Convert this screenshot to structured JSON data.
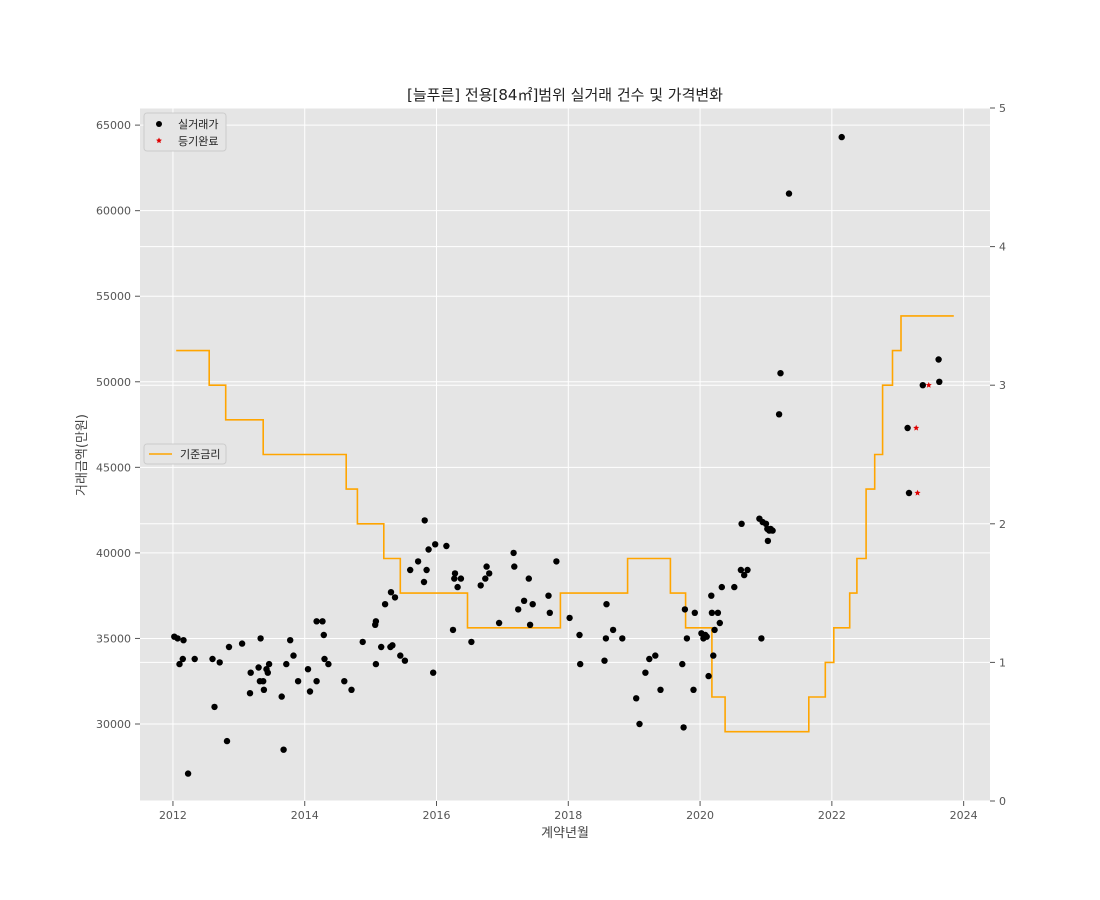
{
  "chart_data": {
    "type": "scatter",
    "title": "[늘푸른] 전용[84㎡]범위 실거래 건수 및 가격변화",
    "xlabel": "계약년월",
    "ylabel": "거래금액(만원)",
    "xlim": [
      2011.5,
      2024.4
    ],
    "ylim": [
      25500,
      66000
    ],
    "y2lim": [
      0,
      5
    ],
    "x_ticks": [
      2012,
      2014,
      2016,
      2018,
      2020,
      2022,
      2024
    ],
    "y_ticks": [
      30000,
      35000,
      40000,
      45000,
      50000,
      55000,
      60000,
      65000
    ],
    "y2_ticks": [
      0,
      1,
      2,
      3,
      4,
      5
    ],
    "x_tick_labels": [
      "2012",
      "2014",
      "2016",
      "2018",
      "2020",
      "2022",
      "2024"
    ],
    "y_tick_labels": [
      "30000",
      "35000",
      "40000",
      "45000",
      "50000",
      "55000",
      "60000",
      "65000"
    ],
    "y2_tick_labels": [
      "0",
      "1",
      "2",
      "3",
      "4",
      "5"
    ],
    "grid": true,
    "legend_top": {
      "placement": "top-left",
      "entries": [
        "실거래가",
        "등기완료"
      ]
    },
    "legend_mid": {
      "placement": "center-left",
      "entries": [
        "기준금리"
      ]
    },
    "colors": {
      "transactions": "#000000",
      "registered": "#e00000",
      "base_rate": "#ffa500",
      "plot_bg": "#e5e5e5",
      "grid": "#ffffff"
    },
    "series": [
      {
        "name": "실거래가",
        "kind": "scatter",
        "points": [
          [
            2012.02,
            35100
          ],
          [
            2012.07,
            35000
          ],
          [
            2012.1,
            33500
          ],
          [
            2012.15,
            33800
          ],
          [
            2012.16,
            34900
          ],
          [
            2012.23,
            27100
          ],
          [
            2012.33,
            33800
          ],
          [
            2012.6,
            33800
          ],
          [
            2012.63,
            31000
          ],
          [
            2012.71,
            33600
          ],
          [
            2012.82,
            29000
          ],
          [
            2012.85,
            34500
          ],
          [
            2013.05,
            34700
          ],
          [
            2013.17,
            31800
          ],
          [
            2013.18,
            33000
          ],
          [
            2013.3,
            33300
          ],
          [
            2013.32,
            32500
          ],
          [
            2013.33,
            35000
          ],
          [
            2013.37,
            32500
          ],
          [
            2013.38,
            32000
          ],
          [
            2013.42,
            33200
          ],
          [
            2013.44,
            33000
          ],
          [
            2013.46,
            33500
          ],
          [
            2013.65,
            31600
          ],
          [
            2013.68,
            28500
          ],
          [
            2013.72,
            33500
          ],
          [
            2013.78,
            34900
          ],
          [
            2013.83,
            34000
          ],
          [
            2013.9,
            32500
          ],
          [
            2014.05,
            33200
          ],
          [
            2014.08,
            31900
          ],
          [
            2014.18,
            32500
          ],
          [
            2014.18,
            36000
          ],
          [
            2014.27,
            36000
          ],
          [
            2014.29,
            35200
          ],
          [
            2014.3,
            33800
          ],
          [
            2014.36,
            33500
          ],
          [
            2014.6,
            32500
          ],
          [
            2014.71,
            32000
          ],
          [
            2014.88,
            34800
          ],
          [
            2015.07,
            35800
          ],
          [
            2015.08,
            36000
          ],
          [
            2015.08,
            33500
          ],
          [
            2015.16,
            34500
          ],
          [
            2015.22,
            37000
          ],
          [
            2015.3,
            34500
          ],
          [
            2015.31,
            37700
          ],
          [
            2015.33,
            34600
          ],
          [
            2015.37,
            37400
          ],
          [
            2015.45,
            34000
          ],
          [
            2015.52,
            33700
          ],
          [
            2015.6,
            39000
          ],
          [
            2015.72,
            39500
          ],
          [
            2015.81,
            38300
          ],
          [
            2015.82,
            41900
          ],
          [
            2015.85,
            39000
          ],
          [
            2015.88,
            40200
          ],
          [
            2015.95,
            33000
          ],
          [
            2015.98,
            40500
          ],
          [
            2016.15,
            40400
          ],
          [
            2016.25,
            35500
          ],
          [
            2016.27,
            38500
          ],
          [
            2016.28,
            38800
          ],
          [
            2016.32,
            38000
          ],
          [
            2016.37,
            38500
          ],
          [
            2016.53,
            34800
          ],
          [
            2016.67,
            38100
          ],
          [
            2016.74,
            38500
          ],
          [
            2016.76,
            39200
          ],
          [
            2016.8,
            38800
          ],
          [
            2016.95,
            35900
          ],
          [
            2017.17,
            40000
          ],
          [
            2017.18,
            39200
          ],
          [
            2017.24,
            36700
          ],
          [
            2017.33,
            37200
          ],
          [
            2017.4,
            38500
          ],
          [
            2017.42,
            35800
          ],
          [
            2017.46,
            37000
          ],
          [
            2017.7,
            37500
          ],
          [
            2017.72,
            36500
          ],
          [
            2017.82,
            39500
          ],
          [
            2018.02,
            36200
          ],
          [
            2018.17,
            35200
          ],
          [
            2018.18,
            33500
          ],
          [
            2018.55,
            33700
          ],
          [
            2018.57,
            35000
          ],
          [
            2018.58,
            37000
          ],
          [
            2018.68,
            35500
          ],
          [
            2018.82,
            35000
          ],
          [
            2019.03,
            31500
          ],
          [
            2019.08,
            30000
          ],
          [
            2019.17,
            33000
          ],
          [
            2019.23,
            33800
          ],
          [
            2019.32,
            34000
          ],
          [
            2019.4,
            32000
          ],
          [
            2019.73,
            33500
          ],
          [
            2019.75,
            29800
          ],
          [
            2019.77,
            36700
          ],
          [
            2019.8,
            35000
          ],
          [
            2019.9,
            32000
          ],
          [
            2019.92,
            36500
          ],
          [
            2020.02,
            35300
          ],
          [
            2020.05,
            35000
          ],
          [
            2020.08,
            35200
          ],
          [
            2020.1,
            35100
          ],
          [
            2020.13,
            32800
          ],
          [
            2020.17,
            37500
          ],
          [
            2020.18,
            36500
          ],
          [
            2020.2,
            34000
          ],
          [
            2020.22,
            35500
          ],
          [
            2020.27,
            36500
          ],
          [
            2020.3,
            35900
          ],
          [
            2020.33,
            38000
          ],
          [
            2020.52,
            38000
          ],
          [
            2020.62,
            39000
          ],
          [
            2020.63,
            41700
          ],
          [
            2020.67,
            38700
          ],
          [
            2020.72,
            39000
          ],
          [
            2020.9,
            42000
          ],
          [
            2020.93,
            35000
          ],
          [
            2020.95,
            41800
          ],
          [
            2021.0,
            41700
          ],
          [
            2021.02,
            41400
          ],
          [
            2021.03,
            40700
          ],
          [
            2021.05,
            41300
          ],
          [
            2021.07,
            41400
          ],
          [
            2021.1,
            41300
          ],
          [
            2021.2,
            48100
          ],
          [
            2021.22,
            50500
          ],
          [
            2021.35,
            61000
          ],
          [
            2022.15,
            64300
          ],
          [
            2023.15,
            47300
          ],
          [
            2023.17,
            43500
          ],
          [
            2023.38,
            49800
          ],
          [
            2023.62,
            51300
          ],
          [
            2023.63,
            50000
          ]
        ]
      },
      {
        "name": "등기완료",
        "kind": "scatter",
        "points": [
          [
            2023.28,
            47300
          ],
          [
            2023.3,
            43500
          ],
          [
            2023.47,
            49800
          ]
        ]
      },
      {
        "name": "기준금리",
        "kind": "step",
        "axis": "right",
        "x_end": 2023.85,
        "steps": [
          [
            2012.05,
            3.25
          ],
          [
            2012.55,
            3.0
          ],
          [
            2012.8,
            2.75
          ],
          [
            2013.37,
            2.5
          ],
          [
            2014.63,
            2.25
          ],
          [
            2014.8,
            2.0
          ],
          [
            2015.2,
            1.75
          ],
          [
            2015.45,
            1.5
          ],
          [
            2016.47,
            1.25
          ],
          [
            2017.88,
            1.5
          ],
          [
            2018.9,
            1.75
          ],
          [
            2019.55,
            1.5
          ],
          [
            2019.78,
            1.25
          ],
          [
            2020.18,
            0.75
          ],
          [
            2020.38,
            0.5
          ],
          [
            2021.65,
            0.75
          ],
          [
            2021.9,
            1.0
          ],
          [
            2022.03,
            1.25
          ],
          [
            2022.27,
            1.5
          ],
          [
            2022.38,
            1.75
          ],
          [
            2022.52,
            2.25
          ],
          [
            2022.65,
            2.5
          ],
          [
            2022.77,
            3.0
          ],
          [
            2022.92,
            3.25
          ],
          [
            2023.05,
            3.5
          ]
        ]
      }
    ]
  }
}
